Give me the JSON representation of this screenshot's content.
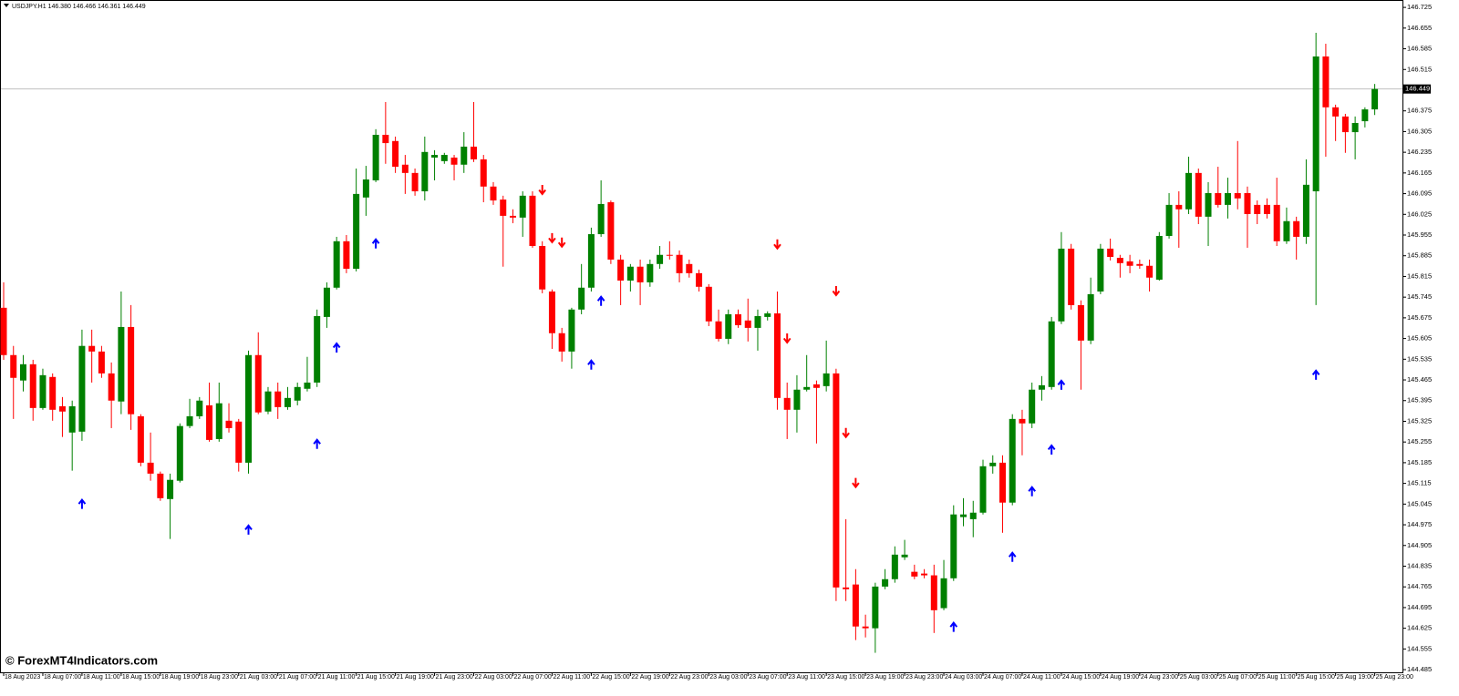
{
  "chart_data": {
    "type": "candlestick",
    "header_text": "USDJPY.H1  146.380 146.466 146.361 146.449",
    "watermark": "© ForexMT4Indicators.com",
    "up_color": "#008000",
    "down_color": "#ff0000",
    "ylim": [
      144.476,
      146.75
    ],
    "yticks": [
      146.725,
      146.655,
      146.585,
      146.515,
      146.375,
      146.305,
      146.235,
      146.165,
      146.095,
      146.025,
      145.955,
      145.885,
      145.815,
      145.745,
      145.675,
      145.605,
      145.535,
      145.465,
      145.395,
      145.325,
      145.255,
      145.185,
      145.115,
      145.045,
      144.975,
      144.905,
      144.835,
      144.765,
      144.695,
      144.625,
      144.555,
      144.485
    ],
    "current_price": 146.449,
    "categories": [
      "18 Aug 2023",
      null,
      null,
      null,
      "18 Aug 07:00",
      null,
      null,
      null,
      "18 Aug 11:00",
      null,
      null,
      null,
      "18 Aug 15:00",
      null,
      null,
      null,
      "18 Aug 19:00",
      null,
      null,
      null,
      "18 Aug 23:00",
      null,
      null,
      null,
      "21 Aug 03:00",
      null,
      null,
      null,
      "21 Aug 07:00",
      null,
      null,
      null,
      "21 Aug 11:00",
      null,
      null,
      null,
      "21 Aug 15:00",
      null,
      null,
      null,
      "21 Aug 19:00",
      null,
      null,
      null,
      "21 Aug 23:00",
      null,
      null,
      null,
      "22 Aug 03:00",
      null,
      null,
      null,
      "22 Aug 07:00",
      null,
      null,
      null,
      "22 Aug 11:00",
      null,
      null,
      null,
      "22 Aug 15:00",
      null,
      null,
      null,
      "22 Aug 19:00",
      null,
      null,
      null,
      "22 Aug 23:00",
      null,
      null,
      null,
      "23 Aug 03:00",
      null,
      null,
      null,
      "23 Aug 07:00",
      null,
      null,
      null,
      "23 Aug 11:00",
      null,
      null,
      null,
      "23 Aug 15:00",
      null,
      null,
      null,
      "23 Aug 19:00",
      null,
      null,
      null,
      "23 Aug 23:00",
      null,
      null,
      null,
      "24 Aug 03:00",
      null,
      null,
      null,
      "24 Aug 07:00",
      null,
      null,
      null,
      "24 Aug 11:00",
      null,
      null,
      null,
      "24 Aug 15:00",
      null,
      null,
      null,
      "24 Aug 19:00",
      null,
      null,
      null,
      "24 Aug 23:00",
      null,
      null,
      null,
      "25 Aug 03:00",
      null,
      null,
      null,
      "25 Aug 07:00",
      null,
      null,
      null,
      "25 Aug 11:00",
      null,
      null,
      null,
      "25 Aug 15:00",
      null,
      null,
      null,
      "25 Aug 19:00",
      null,
      null,
      null,
      "25 Aug 23:00"
    ],
    "open": [
      145.709,
      145.549,
      145.463,
      145.518,
      145.37,
      145.475,
      145.376,
      145.287,
      145.29,
      145.58,
      145.561,
      145.487,
      145.392,
      145.644,
      145.342,
      145.185,
      145.148,
      145.062,
      145.124,
      145.309,
      145.342,
      145.379,
      145.265,
      145.327,
      145.324,
      145.185,
      145.549,
      145.358,
      145.426,
      145.373,
      145.395,
      145.435,
      145.456,
      145.678,
      145.777,
      145.934,
      145.841,
      146.082,
      146.14,
      146.294,
      146.273,
      146.193,
      146.165,
      146.103,
      146.217,
      146.205,
      146.217,
      146.193,
      146.254,
      146.211,
      146.119,
      146.075,
      146.02,
      146.014,
      146.088,
      145.918,
      145.764,
      145.623,
      145.561,
      145.703,
      145.777,
      145.958,
      146.066,
      145.872,
      145.801,
      145.848,
      145.795,
      145.857,
      145.888,
      145.888,
      145.857,
      145.826,
      145.78,
      145.663,
      145.604,
      145.687,
      145.666,
      145.641,
      145.678,
      145.69,
      145.404,
      145.364,
      145.432,
      145.45,
      145.444,
      145.487,
      144.763,
      144.773,
      144.631,
      144.625,
      144.766,
      144.791,
      144.865,
      144.816,
      144.81,
      144.804,
      144.693,
      144.794,
      145.001,
      144.994,
      145.016,
      145.173,
      145.185,
      145.05,
      145.333,
      145.318,
      145.432,
      145.441,
      145.663,
      145.909,
      145.718,
      145.598,
      145.764,
      145.909,
      145.878,
      145.866,
      145.857,
      145.851,
      145.804,
      145.952,
      146.057,
      146.042,
      146.165,
      146.017,
      146.097,
      146.057,
      146.097,
      146.097,
      146.057,
      146.057,
      146.057,
      145.934,
      146.002,
      145.949,
      146.103,
      146.559,
      146.387,
      146.356,
      146.303,
      146.34,
      146.38
    ],
    "high": [
      145.795,
      145.58,
      145.549,
      145.533,
      145.503,
      145.487,
      145.407,
      145.395,
      145.635,
      145.635,
      145.58,
      145.524,
      145.764,
      145.718,
      145.349,
      145.287,
      145.155,
      145.148,
      145.318,
      145.401,
      145.407,
      145.456,
      145.456,
      145.386,
      145.333,
      145.564,
      145.626,
      145.441,
      145.456,
      145.441,
      145.456,
      145.543,
      145.703,
      145.795,
      145.949,
      145.955,
      146.18,
      146.189,
      146.313,
      146.405,
      146.288,
      146.226,
      146.18,
      146.288,
      146.242,
      146.233,
      146.226,
      146.303,
      146.405,
      146.226,
      146.134,
      146.088,
      146.042,
      146.103,
      146.103,
      145.934,
      145.771,
      145.641,
      145.709,
      145.857,
      145.98,
      146.14,
      146.072,
      145.888,
      145.857,
      145.872,
      145.872,
      145.918,
      145.934,
      145.903,
      145.872,
      145.838,
      145.789,
      145.703,
      145.703,
      145.703,
      145.74,
      145.703,
      145.697,
      145.764,
      145.456,
      145.481,
      145.549,
      145.463,
      145.598,
      145.503,
      144.994,
      144.825,
      144.671,
      144.779,
      144.825,
      144.902,
      144.924,
      144.84,
      144.825,
      144.84,
      144.856,
      145.041,
      145.065,
      145.056,
      145.195,
      145.21,
      145.21,
      145.349,
      145.364,
      145.456,
      145.478,
      145.678,
      145.965,
      145.925,
      145.734,
      145.811,
      145.925,
      145.943,
      145.888,
      145.888,
      145.872,
      145.872,
      145.965,
      146.097,
      146.103,
      146.22,
      146.18,
      146.134,
      146.186,
      146.149,
      146.273,
      146.119,
      146.072,
      146.079,
      146.149,
      146.048,
      146.017,
      146.211,
      146.639,
      146.602,
      146.396,
      146.365,
      146.356,
      146.387,
      146.466
    ],
    "low": [
      145.533,
      145.333,
      145.426,
      145.327,
      145.364,
      145.327,
      145.272,
      145.158,
      145.259,
      145.456,
      145.472,
      145.302,
      145.349,
      145.296,
      145.173,
      145.124,
      145.056,
      144.927,
      145.118,
      145.302,
      145.333,
      145.256,
      145.256,
      145.287,
      145.155,
      145.148,
      145.349,
      145.349,
      145.333,
      145.364,
      145.379,
      145.426,
      145.441,
      145.641,
      145.771,
      145.826,
      145.832,
      146.02,
      146.134,
      146.196,
      146.165,
      146.094,
      146.088,
      146.072,
      146.14,
      146.196,
      146.14,
      146.165,
      146.202,
      146.066,
      146.057,
      145.848,
      145.995,
      145.949,
      145.912,
      145.758,
      145.57,
      145.527,
      145.503,
      145.687,
      145.764,
      145.949,
      145.857,
      145.718,
      145.764,
      145.718,
      145.78,
      145.841,
      145.872,
      145.795,
      145.811,
      145.764,
      145.647,
      145.595,
      145.586,
      145.641,
      145.595,
      145.564,
      145.666,
      145.364,
      145.265,
      145.287,
      145.426,
      145.25,
      145.426,
      144.717,
      144.717,
      144.585,
      144.594,
      144.542,
      144.757,
      144.779,
      144.856,
      144.791,
      144.794,
      144.609,
      144.686,
      144.785,
      144.97,
      144.933,
      145.01,
      145.148,
      144.948,
      145.041,
      145.21,
      145.302,
      145.395,
      145.432,
      145.654,
      145.703,
      145.432,
      145.586,
      145.755,
      145.869,
      145.811,
      145.826,
      145.841,
      145.764,
      145.801,
      145.943,
      145.912,
      146.026,
      145.992,
      145.918,
      146.048,
      146.011,
      146.042,
      145.912,
      145.992,
      146.011,
      145.918,
      145.925,
      145.872,
      145.925,
      145.718,
      146.22,
      146.273,
      146.233,
      146.211,
      146.319,
      146.361
    ],
    "close": [
      145.549,
      145.472,
      145.518,
      145.37,
      145.481,
      145.364,
      145.358,
      145.376,
      145.58,
      145.561,
      145.487,
      145.395,
      145.644,
      145.349,
      145.185,
      145.148,
      145.065,
      145.127,
      145.309,
      145.342,
      145.395,
      145.262,
      145.386,
      145.302,
      145.185,
      145.549,
      145.355,
      145.426,
      145.373,
      145.404,
      145.441,
      145.456,
      145.681,
      145.777,
      145.934,
      145.841,
      146.094,
      146.143,
      146.294,
      146.266,
      146.186,
      146.165,
      146.103,
      146.236,
      146.226,
      146.226,
      146.193,
      146.254,
      146.211,
      146.119,
      146.072,
      146.02,
      146.014,
      146.088,
      145.918,
      145.771,
      145.623,
      145.561,
      145.703,
      145.777,
      145.958,
      146.06,
      145.872,
      145.801,
      145.848,
      145.795,
      145.857,
      145.888,
      145.885,
      145.826,
      145.826,
      145.78,
      145.663,
      145.604,
      145.687,
      145.65,
      145.641,
      145.681,
      145.69,
      145.404,
      145.364,
      145.432,
      145.441,
      145.438,
      145.487,
      144.763,
      144.757,
      144.631,
      144.625,
      144.766,
      144.791,
      144.874,
      144.874,
      144.8,
      144.804,
      144.686,
      144.794,
      145.01,
      145.01,
      145.016,
      145.173,
      145.185,
      145.05,
      145.333,
      145.318,
      145.432,
      145.447,
      145.663,
      145.909,
      145.718,
      145.598,
      145.755,
      145.909,
      145.881,
      145.86,
      145.851,
      145.851,
      145.811,
      145.952,
      146.057,
      146.042,
      146.165,
      146.017,
      146.097,
      146.057,
      146.097,
      146.079,
      146.026,
      146.026,
      146.026,
      145.934,
      146.002,
      145.949,
      146.125,
      146.559,
      146.387,
      146.356,
      146.303,
      146.334,
      146.38,
      146.449
    ],
    "buy_arrows": {
      "color": "#0000ff",
      "values": [
        null,
        null,
        null,
        null,
        null,
        null,
        null,
        null,
        145.044,
        null,
        null,
        null,
        null,
        null,
        null,
        null,
        null,
        null,
        null,
        null,
        null,
        null,
        null,
        null,
        null,
        144.957,
        null,
        null,
        null,
        null,
        null,
        null,
        145.247,
        null,
        145.573,
        null,
        null,
        null,
        145.925,
        null,
        null,
        null,
        null,
        null,
        null,
        null,
        null,
        null,
        null,
        null,
        null,
        null,
        null,
        null,
        null,
        null,
        null,
        null,
        null,
        null,
        145.515,
        145.731,
        null,
        null,
        null,
        null,
        null,
        null,
        null,
        null,
        null,
        null,
        null,
        null,
        null,
        null,
        null,
        null,
        null,
        null,
        null,
        null,
        null,
        null,
        null,
        null,
        null,
        null,
        null,
        null,
        null,
        null,
        null,
        null,
        null,
        null,
        null,
        144.628,
        null,
        null,
        null,
        null,
        null,
        144.865,
        null,
        145.087,
        null,
        145.228,
        145.447,
        null,
        null,
        null,
        null,
        null,
        null,
        null,
        null,
        null,
        null,
        null,
        null,
        null,
        null,
        null,
        null,
        null,
        null,
        null,
        null,
        null,
        null,
        null,
        null,
        null,
        145.481,
        null,
        null,
        null,
        null,
        null,
        null
      ]
    },
    "sell_arrows": {
      "color": "#ff0000",
      "values": [
        null,
        null,
        null,
        null,
        null,
        null,
        null,
        null,
        null,
        null,
        null,
        null,
        null,
        null,
        null,
        null,
        null,
        null,
        null,
        null,
        null,
        null,
        null,
        null,
        null,
        null,
        null,
        null,
        null,
        null,
        null,
        null,
        null,
        null,
        null,
        null,
        null,
        null,
        null,
        null,
        null,
        null,
        null,
        null,
        null,
        null,
        null,
        null,
        null,
        null,
        null,
        null,
        null,
        null,
        null,
        146.109,
        145.946,
        145.931,
        null,
        null,
        null,
        null,
        null,
        null,
        null,
        null,
        null,
        null,
        null,
        null,
        null,
        null,
        null,
        null,
        null,
        null,
        null,
        null,
        null,
        145.925,
        145.607,
        null,
        null,
        null,
        null,
        145.767,
        145.287,
        145.118,
        null,
        null,
        null,
        null,
        null,
        null,
        null,
        null,
        null,
        null,
        null,
        null,
        null,
        null,
        null,
        null,
        null,
        null,
        null,
        null,
        null,
        null,
        null,
        null,
        null,
        null,
        null,
        null,
        null,
        null,
        null,
        null,
        null,
        null,
        null,
        null,
        null,
        null,
        null,
        null,
        null,
        null,
        null,
        null,
        null,
        null,
        null,
        null,
        null,
        null,
        null,
        null,
        null
      ]
    }
  }
}
